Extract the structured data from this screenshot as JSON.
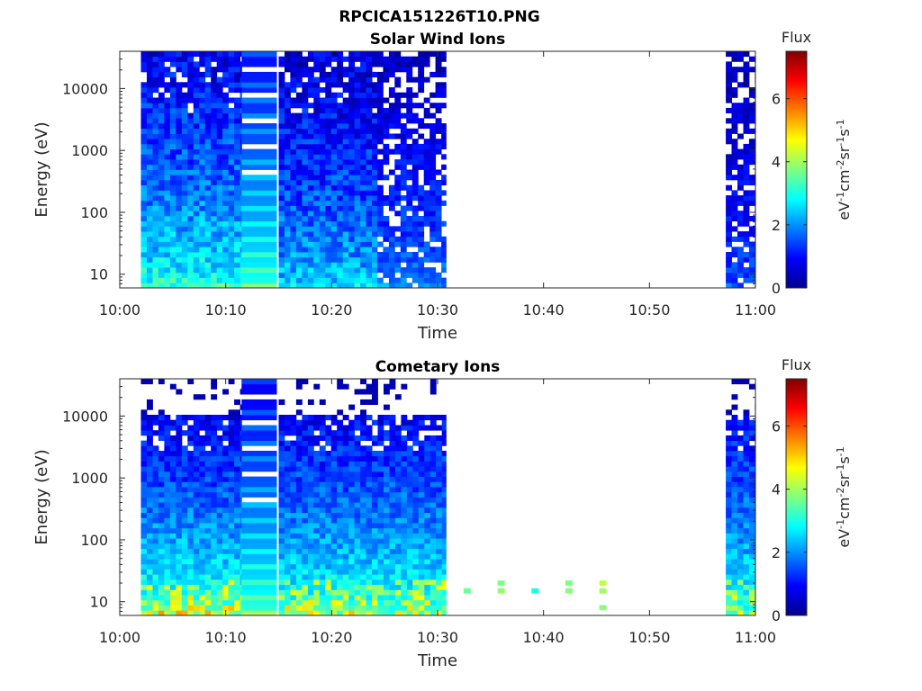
{
  "figure_title": "RPCICA151226T10.PNG",
  "colormap": [
    "#00008f",
    "#0000ff",
    "#0080ff",
    "#00ffff",
    "#80ff80",
    "#ffff00",
    "#ff8000",
    "#ff0000",
    "#800000"
  ],
  "chart_data": [
    {
      "type": "heatmap",
      "title": "Solar Wind Ions",
      "xlabel": "Time",
      "ylabel": "Energy (eV)",
      "x_ticks": [
        "10:00",
        "10:10",
        "10:20",
        "10:30",
        "10:40",
        "10:50",
        "11:00"
      ],
      "y_ticks": [
        "10",
        "100",
        "1000",
        "10000"
      ],
      "y_scale": "log",
      "y_range": [
        6,
        40000
      ],
      "colorbar": {
        "title": "Flux",
        "unit_base": "eV",
        "unit_exps": [
          "-1",
          "-2",
          "-1",
          "-1"
        ],
        "unit_parts": [
          "cm",
          "sr",
          "s"
        ],
        "ticks": [
          "0",
          "2",
          "4",
          "6"
        ],
        "range": [
          0,
          7.5
        ]
      },
      "segments": [
        {
          "start_min": 2,
          "end_min": 11.5,
          "type": "noisy",
          "value_low_e": 3.2,
          "value_high_e": 0.8
        },
        {
          "start_min": 11.5,
          "end_min": 14.8,
          "type": "bands",
          "value_low_e": 3.4,
          "value_high_e": 1.2
        },
        {
          "start_min": 15,
          "end_min": 24.3,
          "type": "noisy",
          "value_low_e": 2.6,
          "value_high_e": 0.6
        },
        {
          "start_min": 24.3,
          "end_min": 30.8,
          "type": "sparse",
          "value_low_e": 2.0,
          "value_high_e": 0.4
        },
        {
          "start_min": 57.2,
          "end_min": 60,
          "type": "sparse",
          "value_low_e": 1.6,
          "value_high_e": 0.3
        }
      ]
    },
    {
      "type": "heatmap",
      "title": "Cometary Ions",
      "xlabel": "Time",
      "ylabel": "Energy (eV)",
      "x_ticks": [
        "10:00",
        "10:10",
        "10:20",
        "10:30",
        "10:40",
        "10:50",
        "11:00"
      ],
      "y_ticks": [
        "10",
        "100",
        "1000",
        "10000"
      ],
      "y_scale": "log",
      "y_range": [
        6,
        40000
      ],
      "colorbar": {
        "title": "Flux",
        "unit_base": "eV",
        "unit_exps": [
          "-1",
          "-2",
          "-1",
          "-1"
        ],
        "unit_parts": [
          "cm",
          "sr",
          "s"
        ],
        "ticks": [
          "0",
          "2",
          "4",
          "6"
        ],
        "range": [
          0,
          7.5
        ]
      },
      "segments": [
        {
          "start_min": 2,
          "end_min": 11.5,
          "type": "comet",
          "value_low_e": 3.8,
          "value_high_e": 0.5
        },
        {
          "start_min": 11.5,
          "end_min": 14.8,
          "type": "bands",
          "value_low_e": 3.6,
          "value_high_e": 1.0
        },
        {
          "start_min": 15,
          "end_min": 30.8,
          "type": "comet",
          "value_low_e": 3.6,
          "value_high_e": 0.6
        },
        {
          "start_min": 57.2,
          "end_min": 60,
          "type": "comet",
          "value_low_e": 3.4,
          "value_high_e": 0.7
        }
      ],
      "isolated_points": [
        {
          "t_min": 32.8,
          "e_ev": 15,
          "value": 3.6
        },
        {
          "t_min": 36,
          "e_ev": 15,
          "value": 3.9
        },
        {
          "t_min": 36,
          "e_ev": 20,
          "value": 3.7
        },
        {
          "t_min": 39.2,
          "e_ev": 15,
          "value": 3.0
        },
        {
          "t_min": 42.4,
          "e_ev": 15,
          "value": 3.8
        },
        {
          "t_min": 42.4,
          "e_ev": 20,
          "value": 3.7
        },
        {
          "t_min": 45.6,
          "e_ev": 20,
          "value": 4.2
        },
        {
          "t_min": 45.6,
          "e_ev": 15,
          "value": 4.0
        },
        {
          "t_min": 45.6,
          "e_ev": 8,
          "value": 3.8
        }
      ]
    }
  ]
}
